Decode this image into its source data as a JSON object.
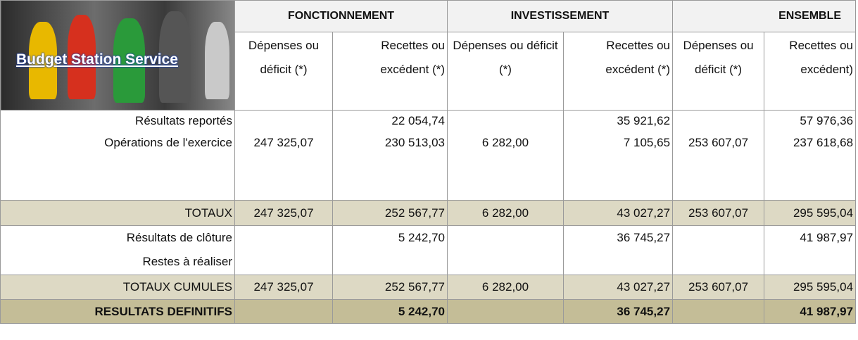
{
  "header": {
    "title": "Budget Station Service",
    "groups": [
      "FONCTIONNEMENT",
      "INVESTISSEMENT",
      "ENSEMBLE"
    ],
    "columns": [
      "Dépenses ou déficit (*)",
      "Recettes ou excédent (*)",
      "Dépenses ou déficit (*)",
      "Recettes ou excédent (*)",
      "Dépenses ou déficit (*)",
      "Recettes ou excédent)"
    ]
  },
  "table": {
    "rows": [
      [
        "Résultats reportés",
        null,
        "22 054,74",
        null,
        "35 921,62",
        null,
        "57 976,36"
      ],
      [
        "Opérations de l'exercice",
        "247 325,07",
        "230 513,03",
        "6 282,00",
        "7 105,65",
        "253 607,07",
        "237 618,68"
      ],
      [
        "TOTAUX",
        "247 325,07",
        "252 567,77",
        "6 282,00",
        "43 027,27",
        "253 607,07",
        "295 595,04"
      ],
      [
        "Résultats de clôture",
        null,
        "5 242,70",
        null,
        "36 745,27",
        null,
        "41 987,97"
      ],
      [
        "Restes à réaliser",
        null,
        null,
        null,
        null,
        null,
        null
      ],
      [
        "TOTAUX CUMULES",
        "247 325,07",
        "252 567,77",
        "6 282,00",
        "43 027,27",
        "253 607,07",
        "295 595,04"
      ],
      [
        "RESULTATS DEFINITIFS",
        null,
        "5 242,70",
        null,
        "36 745,27",
        null,
        "41 987,97"
      ]
    ]
  }
}
